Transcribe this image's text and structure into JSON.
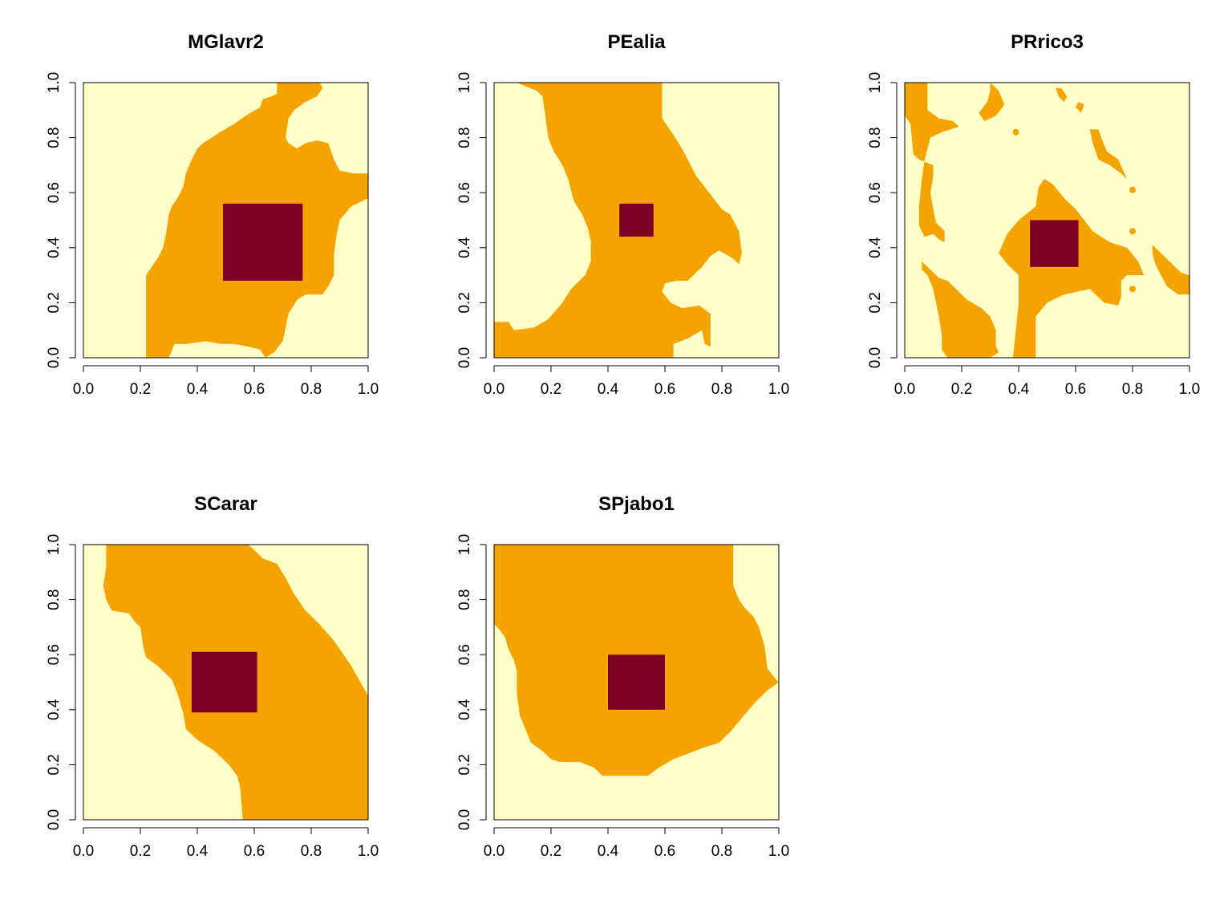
{
  "figure": {
    "colors": {
      "background": "#FFFFC8",
      "habitat": "#F5A300",
      "core": "#7D0025",
      "axis": "#000000"
    }
  },
  "chart_data": [
    {
      "type": "heatmap",
      "title": "MGlavr2",
      "xlim": [
        0,
        1
      ],
      "ylim": [
        0,
        1
      ],
      "xticks": [
        "0.0",
        "0.2",
        "0.4",
        "0.6",
        "0.8",
        "1.0"
      ],
      "yticks": [
        "0.0",
        "0.2",
        "0.4",
        "0.6",
        "0.8",
        "1.0"
      ],
      "grid": false,
      "levels": [
        "background",
        "habitat",
        "core"
      ],
      "core_region": {
        "x": [
          0.49,
          0.77
        ],
        "y": [
          0.28,
          0.56
        ]
      },
      "habitat_region": [
        [
          0.22,
          0
        ],
        [
          0.3,
          0
        ],
        [
          0.32,
          0.05
        ],
        [
          0.36,
          0.05
        ],
        [
          0.43,
          0.06
        ],
        [
          0.48,
          0.05
        ],
        [
          0.53,
          0.05
        ],
        [
          0.58,
          0.04
        ],
        [
          0.62,
          0.03
        ],
        [
          0.64,
          0
        ],
        [
          0.67,
          0.02
        ],
        [
          0.7,
          0.06
        ],
        [
          0.72,
          0.16
        ],
        [
          0.75,
          0.21
        ],
        [
          0.78,
          0.23
        ],
        [
          0.84,
          0.23
        ],
        [
          0.86,
          0.26
        ],
        [
          0.88,
          0.3
        ],
        [
          0.88,
          0.38
        ],
        [
          0.89,
          0.45
        ],
        [
          0.9,
          0.5
        ],
        [
          0.94,
          0.55
        ],
        [
          0.98,
          0.57
        ],
        [
          1.0,
          0.58
        ],
        [
          1.0,
          0.67
        ],
        [
          0.95,
          0.67
        ],
        [
          0.9,
          0.68
        ],
        [
          0.88,
          0.72
        ],
        [
          0.86,
          0.78
        ],
        [
          0.82,
          0.79
        ],
        [
          0.78,
          0.78
        ],
        [
          0.75,
          0.76
        ],
        [
          0.72,
          0.78
        ],
        [
          0.71,
          0.8
        ],
        [
          0.72,
          0.87
        ],
        [
          0.74,
          0.9
        ],
        [
          0.78,
          0.93
        ],
        [
          0.82,
          0.95
        ],
        [
          0.84,
          0.98
        ],
        [
          0.83,
          1.0
        ],
        [
          0.68,
          1.0
        ],
        [
          0.68,
          0.96
        ],
        [
          0.66,
          0.95
        ],
        [
          0.63,
          0.94
        ],
        [
          0.62,
          0.91
        ],
        [
          0.57,
          0.88
        ],
        [
          0.53,
          0.85
        ],
        [
          0.48,
          0.82
        ],
        [
          0.45,
          0.8
        ],
        [
          0.42,
          0.78
        ],
        [
          0.4,
          0.76
        ],
        [
          0.38,
          0.72
        ],
        [
          0.36,
          0.67
        ],
        [
          0.35,
          0.62
        ],
        [
          0.33,
          0.58
        ],
        [
          0.31,
          0.55
        ],
        [
          0.3,
          0.52
        ],
        [
          0.29,
          0.45
        ],
        [
          0.28,
          0.4
        ],
        [
          0.26,
          0.36
        ],
        [
          0.24,
          0.33
        ],
        [
          0.22,
          0.3
        ]
      ]
    },
    {
      "type": "heatmap",
      "title": "PEalia",
      "xlim": [
        0,
        1
      ],
      "ylim": [
        0,
        1
      ],
      "xticks": [
        "0.0",
        "0.2",
        "0.4",
        "0.6",
        "0.8",
        "1.0"
      ],
      "yticks": [
        "0.0",
        "0.2",
        "0.4",
        "0.6",
        "0.8",
        "1.0"
      ],
      "grid": false,
      "levels": [
        "background",
        "habitat",
        "core"
      ],
      "core_region": {
        "x": [
          0.44,
          0.56
        ],
        "y": [
          0.44,
          0.56
        ]
      },
      "habitat_region": [
        [
          0,
          0
        ],
        [
          0.63,
          0
        ],
        [
          0.63,
          0.05
        ],
        [
          0.68,
          0.07
        ],
        [
          0.73,
          0.1
        ],
        [
          0.74,
          0.05
        ],
        [
          0.76,
          0.04
        ],
        [
          0.76,
          0.16
        ],
        [
          0.72,
          0.19
        ],
        [
          0.66,
          0.18
        ],
        [
          0.62,
          0.2
        ],
        [
          0.59,
          0.24
        ],
        [
          0.6,
          0.27
        ],
        [
          0.64,
          0.28
        ],
        [
          0.68,
          0.28
        ],
        [
          0.7,
          0.3
        ],
        [
          0.73,
          0.33
        ],
        [
          0.76,
          0.37
        ],
        [
          0.79,
          0.39
        ],
        [
          0.84,
          0.36
        ],
        [
          0.86,
          0.34
        ],
        [
          0.87,
          0.38
        ],
        [
          0.86,
          0.46
        ],
        [
          0.83,
          0.52
        ],
        [
          0.8,
          0.54
        ],
        [
          0.77,
          0.58
        ],
        [
          0.74,
          0.62
        ],
        [
          0.71,
          0.66
        ],
        [
          0.69,
          0.7
        ],
        [
          0.66,
          0.76
        ],
        [
          0.63,
          0.81
        ],
        [
          0.59,
          0.87
        ],
        [
          0.59,
          1.0
        ],
        [
          0.08,
          1.0
        ],
        [
          0.15,
          0.97
        ],
        [
          0.17,
          0.95
        ],
        [
          0.18,
          0.88
        ],
        [
          0.19,
          0.8
        ],
        [
          0.21,
          0.75
        ],
        [
          0.24,
          0.7
        ],
        [
          0.26,
          0.65
        ],
        [
          0.28,
          0.57
        ],
        [
          0.31,
          0.52
        ],
        [
          0.33,
          0.47
        ],
        [
          0.34,
          0.42
        ],
        [
          0.34,
          0.35
        ],
        [
          0.32,
          0.3
        ],
        [
          0.27,
          0.25
        ],
        [
          0.24,
          0.2
        ],
        [
          0.19,
          0.14
        ],
        [
          0.14,
          0.11
        ],
        [
          0.07,
          0.1
        ],
        [
          0.05,
          0.13
        ],
        [
          0,
          0.13
        ]
      ]
    },
    {
      "type": "heatmap",
      "title": "PRrico3",
      "xlim": [
        0,
        1
      ],
      "ylim": [
        0,
        1
      ],
      "xticks": [
        "0.0",
        "0.2",
        "0.4",
        "0.6",
        "0.8",
        "1.0"
      ],
      "yticks": [
        "0.0",
        "0.2",
        "0.4",
        "0.6",
        "0.8",
        "1.0"
      ],
      "grid": false,
      "levels": [
        "background",
        "habitat",
        "core"
      ],
      "core_region": {
        "x": [
          0.44,
          0.61
        ],
        "y": [
          0.33,
          0.5
        ]
      },
      "habitat_region": [
        [
          0.38,
          0
        ],
        [
          0.46,
          0
        ],
        [
          0.46,
          0.15
        ],
        [
          0.5,
          0.2
        ],
        [
          0.56,
          0.23
        ],
        [
          0.65,
          0.25
        ],
        [
          0.7,
          0.2
        ],
        [
          0.75,
          0.19
        ],
        [
          0.76,
          0.22
        ],
        [
          0.76,
          0.28
        ],
        [
          0.78,
          0.3
        ],
        [
          0.84,
          0.3
        ],
        [
          0.82,
          0.35
        ],
        [
          0.78,
          0.4
        ],
        [
          0.72,
          0.42
        ],
        [
          0.66,
          0.46
        ],
        [
          0.63,
          0.5
        ],
        [
          0.6,
          0.54
        ],
        [
          0.56,
          0.58
        ],
        [
          0.52,
          0.63
        ],
        [
          0.49,
          0.65
        ],
        [
          0.47,
          0.62
        ],
        [
          0.46,
          0.55
        ],
        [
          0.4,
          0.5
        ],
        [
          0.36,
          0.45
        ],
        [
          0.33,
          0.38
        ],
        [
          0.36,
          0.34
        ],
        [
          0.4,
          0.3
        ],
        [
          0.4,
          0.2
        ],
        [
          0.39,
          0.1
        ]
      ]
    },
    {
      "type": "heatmap",
      "title": "SCarar",
      "xlim": [
        0,
        1
      ],
      "ylim": [
        0,
        1
      ],
      "xticks": [
        "0.0",
        "0.2",
        "0.4",
        "0.6",
        "0.8",
        "1.0"
      ],
      "yticks": [
        "0.0",
        "0.2",
        "0.4",
        "0.6",
        "0.8",
        "1.0"
      ],
      "grid": false,
      "levels": [
        "background",
        "habitat",
        "core"
      ],
      "core_region": {
        "x": [
          0.38,
          0.61
        ],
        "y": [
          0.39,
          0.61
        ]
      },
      "habitat_region": [
        [
          0.08,
          1.0
        ],
        [
          0.58,
          1.0
        ],
        [
          0.63,
          0.95
        ],
        [
          0.68,
          0.93
        ],
        [
          0.71,
          0.88
        ],
        [
          0.74,
          0.82
        ],
        [
          0.78,
          0.76
        ],
        [
          0.83,
          0.71
        ],
        [
          0.88,
          0.65
        ],
        [
          0.94,
          0.56
        ],
        [
          1.0,
          0.45
        ],
        [
          1.0,
          0
        ],
        [
          0.56,
          0
        ],
        [
          0.55,
          0.12
        ],
        [
          0.54,
          0.16
        ],
        [
          0.51,
          0.2
        ],
        [
          0.46,
          0.25
        ],
        [
          0.4,
          0.29
        ],
        [
          0.36,
          0.33
        ],
        [
          0.35,
          0.39
        ],
        [
          0.33,
          0.46
        ],
        [
          0.31,
          0.51
        ],
        [
          0.26,
          0.56
        ],
        [
          0.22,
          0.59
        ],
        [
          0.21,
          0.63
        ],
        [
          0.2,
          0.7
        ],
        [
          0.18,
          0.72
        ],
        [
          0.16,
          0.75
        ],
        [
          0.1,
          0.76
        ],
        [
          0.08,
          0.8
        ],
        [
          0.07,
          0.85
        ],
        [
          0.08,
          0.92
        ]
      ]
    },
    {
      "type": "heatmap",
      "title": "SPjabo1",
      "xlim": [
        0,
        1
      ],
      "ylim": [
        0,
        1
      ],
      "xticks": [
        "0.0",
        "0.2",
        "0.4",
        "0.6",
        "0.8",
        "1.0"
      ],
      "yticks": [
        "0.0",
        "0.2",
        "0.4",
        "0.6",
        "0.8",
        "1.0"
      ],
      "grid": false,
      "levels": [
        "background",
        "habitat",
        "core"
      ],
      "core_region": {
        "x": [
          0.4,
          0.6
        ],
        "y": [
          0.4,
          0.6
        ]
      },
      "habitat_region": [
        [
          0,
          1.0
        ],
        [
          0.84,
          1.0
        ],
        [
          0.84,
          0.85
        ],
        [
          0.86,
          0.8
        ],
        [
          0.88,
          0.77
        ],
        [
          0.91,
          0.74
        ],
        [
          0.93,
          0.7
        ],
        [
          0.95,
          0.63
        ],
        [
          0.96,
          0.55
        ],
        [
          0.99,
          0.51
        ],
        [
          1.0,
          0.5
        ],
        [
          0.96,
          0.47
        ],
        [
          0.92,
          0.43
        ],
        [
          0.87,
          0.37
        ],
        [
          0.83,
          0.32
        ],
        [
          0.79,
          0.28
        ],
        [
          0.73,
          0.26
        ],
        [
          0.68,
          0.24
        ],
        [
          0.63,
          0.22
        ],
        [
          0.58,
          0.19
        ],
        [
          0.54,
          0.16
        ],
        [
          0.38,
          0.16
        ],
        [
          0.35,
          0.19
        ],
        [
          0.3,
          0.21
        ],
        [
          0.23,
          0.21
        ],
        [
          0.2,
          0.22
        ],
        [
          0.17,
          0.25
        ],
        [
          0.13,
          0.28
        ],
        [
          0.11,
          0.33
        ],
        [
          0.09,
          0.38
        ],
        [
          0.08,
          0.46
        ],
        [
          0.08,
          0.54
        ],
        [
          0.07,
          0.58
        ],
        [
          0.05,
          0.62
        ],
        [
          0.04,
          0.66
        ],
        [
          0.02,
          0.69
        ],
        [
          0,
          0.71
        ]
      ]
    }
  ]
}
